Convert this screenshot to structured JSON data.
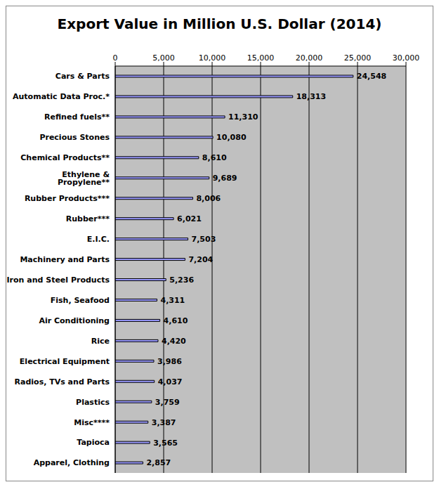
{
  "chart_data": {
    "type": "bar",
    "title": "Export Value in Million U.S. Dollar (2014)",
    "orientation": "horizontal",
    "categories": [
      "Cars & Parts",
      "Automatic Data Proc.*",
      "Refined fuels**",
      "Precious Stones",
      "Chemical Products**",
      "Ethylene & Propylene**",
      "Rubber Products***",
      "Rubber***",
      "E.I.C.",
      "Machinery and Parts",
      "Iron and Steel Products",
      "Fish, Seafood",
      "Air Conditioning",
      "Rice",
      "Electrical Equipment",
      "Radios, TVs and Parts",
      "Plastics",
      "Misc****",
      "Tapioca",
      "Apparel, Clothing"
    ],
    "values": [
      24548,
      18313,
      11310,
      10080,
      8610,
      9689,
      8006,
      6021,
      7503,
      7204,
      5236,
      4311,
      4610,
      4420,
      3986,
      4037,
      3759,
      3387,
      3565,
      2857
    ],
    "value_labels": [
      "24,548",
      "18,313",
      "11,310",
      "10,080",
      "8,610",
      "9,689",
      "8,006",
      "6,021",
      "7,503",
      "7,204",
      "5,236",
      "4,311",
      "4,610",
      "4,420",
      "3,986",
      "4,037",
      "3,759",
      "3,387",
      "3,565",
      "2,857"
    ],
    "color": "#9999ff",
    "xlim": [
      0,
      30000
    ],
    "xticks": [
      0,
      {
        "value": 5000,
        "label": "5,000"
      },
      {
        "value": 10000,
        "label": "10,000"
      },
      {
        "value": 15000,
        "label": "15,000"
      },
      {
        "value": 20000,
        "label": "20,000"
      },
      {
        "value": 25000,
        "label": "25,000"
      },
      {
        "value": 30000,
        "label": "30,000"
      }
    ],
    "grid": true,
    "data_labels": true
  }
}
